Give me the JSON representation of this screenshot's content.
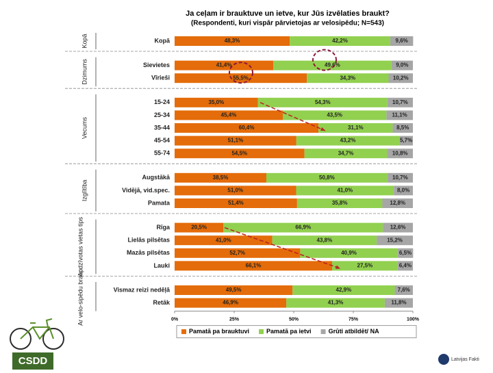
{
  "chart_data": {
    "type": "stacked-bar-horizontal",
    "title": "Ja ceļam ir brauktuve un ietve, kur Jūs izvēlaties braukt?",
    "subtitle": "(Respondenti, kuri vispār pārvietojas ar velosipēdu; N=543)",
    "groups": [
      {
        "label": "Kopā",
        "categories": [
          "Kopā"
        ]
      },
      {
        "label": "Dzimums",
        "categories": [
          "Sievietes",
          "Vīrieši"
        ]
      },
      {
        "label": "Vecums",
        "categories": [
          "15-24",
          "25-34",
          "35-44",
          "45-54",
          "55-74"
        ]
      },
      {
        "label": "Izglītība",
        "categories": [
          "Augstākā",
          "Vidējā, vid.spec.",
          "Pamata"
        ]
      },
      {
        "label": "Apdzīvotas vietas tips",
        "categories": [
          "Rīga",
          "Lielās pilsētas",
          "Mazās pilsētas",
          "Lauki"
        ]
      },
      {
        "label": "Ar velo-sipēdu brauc:",
        "categories": [
          "Vismaz reizi nedēļā",
          "Retāk"
        ]
      }
    ],
    "series": [
      {
        "name": "Pamatā pa brauktuvi",
        "color": "#e46c0a",
        "values": [
          48.3,
          41.4,
          55.5,
          35.0,
          45.4,
          60.4,
          51.1,
          54.5,
          38.5,
          51.0,
          51.4,
          20.5,
          41.0,
          52.7,
          66.1,
          49.5,
          46.9
        ],
        "value_labels": [
          "48,3%",
          "41,4%",
          "55,5%",
          "35,0%",
          "45,4%",
          "60,4%",
          "51,1%",
          "54,5%",
          "38,5%",
          "51,0%",
          "51,4%",
          "20,5%",
          "41,0%",
          "52,7%",
          "66,1%",
          "49,5%",
          "46,9%"
        ]
      },
      {
        "name": "Pamatā pa ietvi",
        "color": "#92d050",
        "values": [
          42.2,
          49.6,
          34.3,
          54.3,
          43.5,
          31.1,
          43.2,
          34.7,
          50.8,
          41.0,
          35.8,
          66.9,
          43.8,
          40.9,
          27.5,
          42.9,
          41.3
        ],
        "value_labels": [
          "42,2%",
          "49,6%",
          "34,3%",
          "54,3%",
          "43,5%",
          "31,1%",
          "43,2%",
          "34,7%",
          "50,8%",
          "41,0%",
          "35,8%",
          "66,9%",
          "43,8%",
          "40,9%",
          "27,5%",
          "42,9%",
          "41,3%"
        ]
      },
      {
        "name": "Grūti atbildēt/ NA",
        "color": "#a6a6a6",
        "values": [
          9.6,
          9.0,
          10.2,
          10.7,
          11.1,
          8.5,
          5.7,
          10.8,
          10.7,
          8.0,
          12.8,
          12.6,
          15.2,
          6.5,
          6.4,
          7.6,
          11.8
        ],
        "value_labels": [
          "9,6%",
          "9,0%",
          "10,2%",
          "10,7%",
          "11,1%",
          "8,5%",
          "5,7%",
          "10,8%",
          "10,7%",
          "8,0%",
          "12,8%",
          "12,6%",
          "15,2%",
          "6,5%",
          "6,4%",
          "7,6%",
          "11,8%"
        ]
      }
    ],
    "xlim": [
      0,
      100
    ],
    "xticks": [
      {
        "value": 0,
        "label": "0%"
      },
      {
        "value": 25,
        "label": "25%"
      },
      {
        "value": 50,
        "label": "50%"
      },
      {
        "value": 75,
        "label": "75%"
      },
      {
        "value": 100,
        "label": "100%"
      }
    ],
    "legend": "bottom"
  },
  "footer": {
    "logo_left": "CSDD",
    "logo_right": "Latvijas Fakti"
  }
}
